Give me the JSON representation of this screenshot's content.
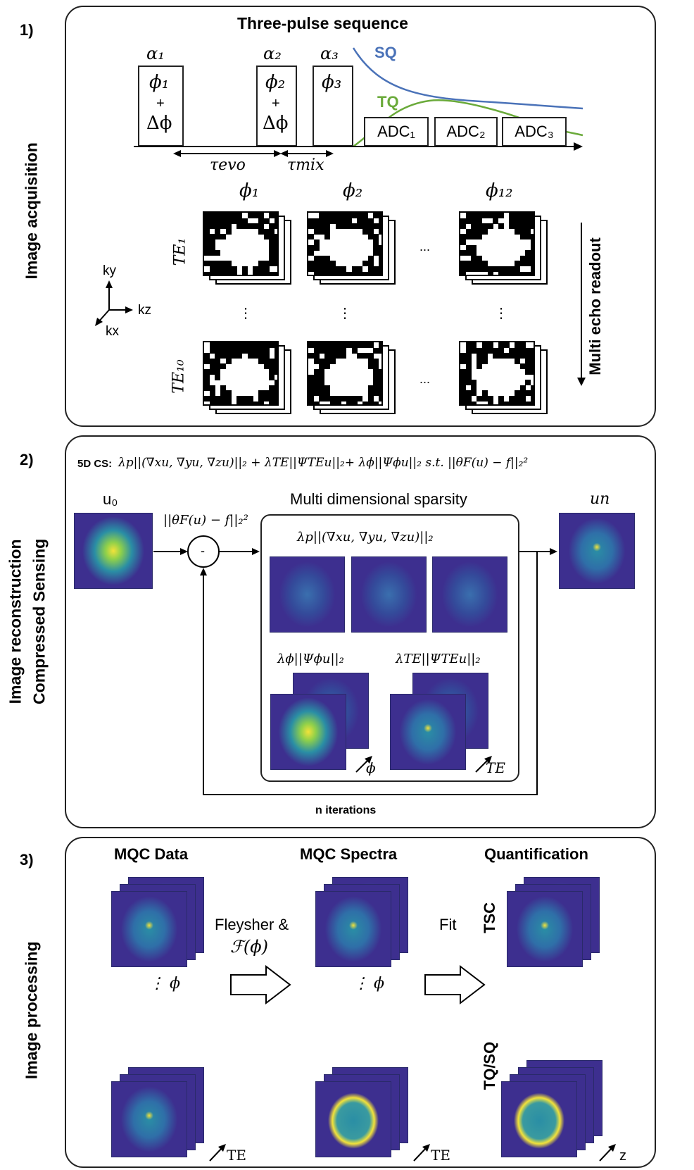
{
  "colors": {
    "sq": "#4a72b8",
    "tq": "#6aaa3a",
    "brain_bg": "#3d2f8f",
    "brain_mid": "#2a8ea5",
    "brain_hot": "#f2e23a"
  },
  "panel1": {
    "number": "1)",
    "side_label": "Image acquisition",
    "title": "Three-pulse sequence",
    "alpha1": "α₁",
    "alpha2": "α₂",
    "alpha3": "α₃",
    "phi1_box": "ϕ₁",
    "phi2_box": "ϕ₂",
    "phi3_box": "ϕ₃",
    "plus": "+",
    "delta_phi": "Δϕ",
    "sq_label": "SQ",
    "tq_label": "TQ",
    "adc1": "ADC₁",
    "adc2": "ADC₂",
    "adc3": "ADC₃",
    "tau_evo": "τevo",
    "tau_mix": "τmix",
    "col_phi1": "ϕ₁",
    "col_phi2": "ϕ₂",
    "col_phi12": "ϕ₁₂",
    "te1": "TE₁",
    "te10": "TE₁₀",
    "dots_h": "...",
    "dots_v": "⋮",
    "ky": "ky",
    "kz": "kz",
    "kx": "kx",
    "readout": "Multi echo readout"
  },
  "panel2": {
    "number": "2)",
    "side_label_1": "Image reconstruction",
    "side_label_2": "Compressed Sensing",
    "cs_prefix": "5D CS:",
    "cs_formula": "λp||(∇xu, ∇yu, ∇zu)||₂ + λTE||ΨTEu||₂+ λϕ||Ψϕu||₂ s.t. ||θF(u) − f||₂²",
    "u0": "u₀",
    "residual": "||θF(u) − f||₂²",
    "minus": "-",
    "sparsity_title": "Multi dimensional sparsity",
    "tv_term": "λp||(∇xu, ∇yu, ∇zu)||₂",
    "phi_term": "λϕ||Ψϕu||₂",
    "te_term": "λTE||ΨTEu||₂",
    "phi_axis": "ϕ",
    "te_axis": "TE",
    "un": "un",
    "iterations": "n iterations"
  },
  "panel3": {
    "number": "3)",
    "side_label": "Image processing",
    "col1_title": "MQC Data",
    "col2_title": "MQC Spectra",
    "col3_title": "Quantification",
    "fleysher": "Fleysher &",
    "fourier": "ℱ(ϕ)",
    "fit": "Fit",
    "dots_phi_1": "⋮  ϕ",
    "dots_phi_2": "⋮  ϕ",
    "te_axis_1": "TE",
    "te_axis_2": "TE",
    "z_axis": "z",
    "tsc": "TSC",
    "tq_sq": "TQ/SQ"
  }
}
